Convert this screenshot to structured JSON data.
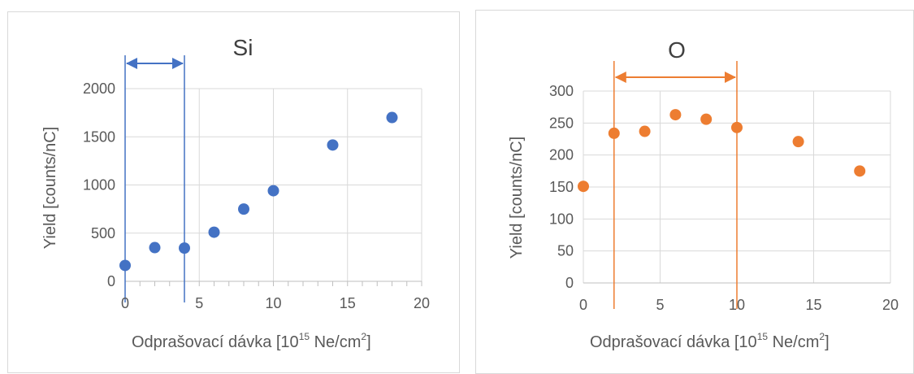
{
  "chart_data": [
    {
      "type": "scatter",
      "title": "Si",
      "xlabel": "Odprašovací dávka [10",
      "xlabel_exp": "15",
      "xlabel_unit": " Ne/cm",
      "xlabel_unit_exp": "2",
      "xlabel_close": "]",
      "ylabel": "Yield [counts/nC]",
      "xlim": [
        0,
        20
      ],
      "ylim": [
        0,
        2000
      ],
      "xticks": [
        "0",
        "5",
        "10",
        "15",
        "20"
      ],
      "yticks": [
        "0",
        "500",
        "1000",
        "1500",
        "2000"
      ],
      "grid": true,
      "marker_color": "#4472c4",
      "x": [
        0,
        2,
        4,
        6,
        8,
        10,
        14,
        18
      ],
      "y": [
        165,
        350,
        345,
        510,
        750,
        940,
        1415,
        1700
      ],
      "annotation": {
        "type": "double-arrow-with-lines",
        "x_start": 0,
        "x_end": 4,
        "color": "#4472c4"
      }
    },
    {
      "type": "scatter",
      "title": "O",
      "xlabel": "Odprašovací dávka [10",
      "xlabel_exp": "15",
      "xlabel_unit": " Ne/cm",
      "xlabel_unit_exp": "2",
      "xlabel_close": "]",
      "ylabel": "Yield [counts/nC]",
      "xlim": [
        0,
        20
      ],
      "ylim": [
        0,
        300
      ],
      "xticks": [
        "0",
        "5",
        "10",
        "15",
        "20"
      ],
      "yticks": [
        "0",
        "50",
        "100",
        "150",
        "200",
        "250",
        "300"
      ],
      "grid": true,
      "marker_color": "#ed7d31",
      "x": [
        0,
        2,
        4,
        6,
        8,
        10,
        14,
        18
      ],
      "y": [
        151,
        234,
        237,
        263,
        256,
        243,
        221,
        175
      ],
      "annotation": {
        "type": "double-arrow-with-lines",
        "x_start": 2,
        "x_end": 10,
        "color": "#ed7d31"
      }
    }
  ]
}
